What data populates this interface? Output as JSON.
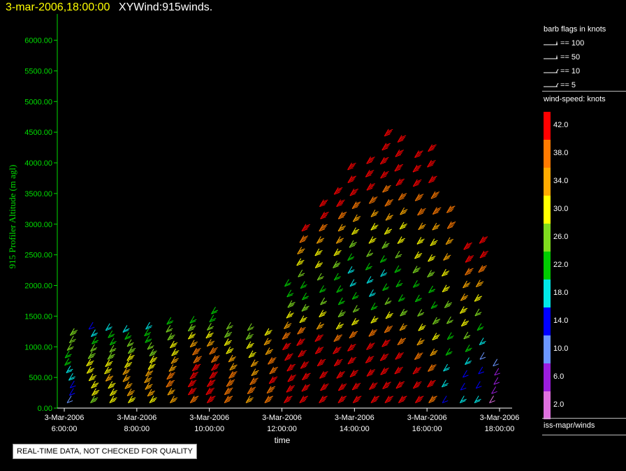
{
  "header": {
    "timestamp": "3-mar-2006,18:00:00",
    "title": "XYWind:915winds."
  },
  "chart_data": {
    "type": "wind-barb-time-height",
    "title": "XYWind:915winds.",
    "xlabel": "time",
    "ylabel": "915 Profiler Altitude (m agl)",
    "ylim": [
      0,
      6200
    ],
    "yticks": [
      "0.00",
      "500.00",
      "1000.00",
      "1500.00",
      "2000.00",
      "2500.00",
      "3000.00",
      "3500.00",
      "4000.00",
      "4500.00",
      "5000.00",
      "5500.00",
      "6000.00"
    ],
    "xticks": [
      {
        "date": "3-Mar-2006",
        "time": "6:00:00",
        "hour": 6
      },
      {
        "date": "3-Mar-2006",
        "time": "8:00:00",
        "hour": 8
      },
      {
        "date": "3-Mar-2006",
        "time": "10:00:00",
        "hour": 10
      },
      {
        "date": "3-Mar-2006",
        "time": "12:00:00",
        "hour": 12
      },
      {
        "date": "3-Mar-2006",
        "time": "14:00:00",
        "hour": 14
      },
      {
        "date": "3-Mar-2006",
        "time": "16:00:00",
        "hour": 16
      },
      {
        "date": "3-Mar-2006",
        "time": "18:00:00",
        "hour": 18
      }
    ],
    "xlim_hours": [
      6,
      18.2
    ],
    "profiles": [
      {
        "hour": 6.2,
        "top": 1300,
        "speeds": [
          10,
          12,
          14,
          16,
          18,
          20,
          22,
          24,
          24,
          26
        ]
      },
      {
        "hour": 6.8,
        "top": 1400,
        "speeds": [
          26,
          28,
          28,
          30,
          30,
          28,
          26,
          24,
          22,
          18,
          14
        ]
      },
      {
        "hour": 7.3,
        "top": 1380,
        "speeds": [
          28,
          30,
          30,
          32,
          30,
          28,
          26,
          24,
          22,
          20,
          18
        ]
      },
      {
        "hour": 7.8,
        "top": 1350,
        "speeds": [
          30,
          32,
          34,
          34,
          32,
          30,
          28,
          26,
          24,
          22,
          18
        ]
      },
      {
        "hour": 8.4,
        "top": 1400,
        "speeds": [
          30,
          32,
          34,
          34,
          32,
          30,
          28,
          26,
          24,
          22,
          20,
          18
        ]
      },
      {
        "hour": 9.0,
        "top": 1480,
        "speeds": [
          32,
          34,
          36,
          36,
          34,
          32,
          30,
          28,
          26,
          24,
          22
        ]
      },
      {
        "hour": 9.6,
        "top": 1500,
        "speeds": [
          38,
          40,
          42,
          42,
          40,
          38,
          36,
          34,
          30,
          26,
          22
        ]
      },
      {
        "hour": 10.1,
        "top": 1650,
        "speeds": [
          40,
          42,
          42,
          42,
          40,
          38,
          36,
          32,
          28,
          24,
          22,
          20
        ]
      },
      {
        "hour": 10.6,
        "top": 1400,
        "speeds": [
          36,
          38,
          38,
          36,
          34,
          32,
          30,
          28,
          26,
          24
        ]
      },
      {
        "hour": 11.2,
        "top": 1380,
        "speeds": [
          34,
          36,
          36,
          34,
          32,
          30,
          28,
          26,
          24
        ]
      },
      {
        "hour": 11.7,
        "top": 1300,
        "speeds": [
          36,
          38,
          40,
          38,
          36,
          34,
          32,
          30
        ]
      },
      {
        "hour": 12.2,
        "top": 2100,
        "speeds": [
          40,
          42,
          42,
          42,
          42,
          40,
          38,
          34,
          30,
          26,
          22,
          20
        ]
      },
      {
        "hour": 12.6,
        "top": 3000,
        "speeds": [
          42,
          42,
          42,
          42,
          42,
          40,
          36,
          30,
          26,
          22,
          20,
          24,
          28,
          32,
          36,
          40
        ]
      },
      {
        "hour": 13.1,
        "top": 3400,
        "speeds": [
          42,
          42,
          42,
          42,
          42,
          40,
          34,
          28,
          24,
          22,
          24,
          28,
          30,
          32,
          36,
          40,
          42
        ]
      },
      {
        "hour": 13.6,
        "top": 3600,
        "speeds": [
          42,
          42,
          42,
          42,
          40,
          36,
          30,
          26,
          22,
          20,
          22,
          26,
          28,
          32,
          34,
          38,
          40,
          42
        ]
      },
      {
        "hour": 14.0,
        "top": 4000,
        "speeds": [
          42,
          42,
          42,
          42,
          40,
          36,
          30,
          24,
          20,
          16,
          18,
          22,
          26,
          28,
          32,
          36,
          40,
          42,
          42
        ]
      },
      {
        "hour": 14.5,
        "top": 4100,
        "speeds": [
          42,
          42,
          42,
          42,
          40,
          36,
          28,
          22,
          18,
          16,
          20,
          24,
          28,
          30,
          34,
          38,
          40,
          42,
          42
        ]
      },
      {
        "hour": 14.9,
        "top": 4550,
        "speeds": [
          42,
          42,
          42,
          42,
          40,
          36,
          30,
          24,
          20,
          18,
          22,
          26,
          28,
          32,
          36,
          38,
          40,
          42,
          42,
          42
        ]
      },
      {
        "hour": 15.3,
        "top": 4450,
        "speeds": [
          42,
          42,
          42,
          40,
          38,
          32,
          26,
          22,
          20,
          22,
          24,
          28,
          30,
          34,
          36,
          40,
          42,
          42,
          42
        ]
      },
      {
        "hour": 15.8,
        "top": 4200,
        "speeds": [
          42,
          42,
          40,
          38,
          34,
          30,
          24,
          20,
          22,
          26,
          28,
          30,
          34,
          36,
          38,
          40,
          42,
          42
        ]
      },
      {
        "hour": 16.2,
        "top": 4300,
        "speeds": [
          38,
          40,
          38,
          34,
          30,
          26,
          22,
          22,
          26,
          28,
          30,
          34,
          36,
          38,
          40,
          42,
          42
        ]
      },
      {
        "hour": 16.6,
        "top": 3300,
        "speeds": [
          14,
          16,
          18,
          20,
          22,
          24,
          26,
          28,
          30,
          32,
          34,
          36,
          38
        ]
      },
      {
        "hour": 17.1,
        "top": 2700,
        "speeds": [
          16,
          14,
          14,
          18,
          22,
          24,
          28,
          30,
          32,
          34,
          38,
          40,
          42
        ]
      },
      {
        "hour": 17.5,
        "top": 2800,
        "speeds": [
          18,
          14,
          12,
          10,
          16,
          20,
          24,
          28,
          32,
          38,
          40,
          42
        ]
      },
      {
        "hour": 17.9,
        "top": 800,
        "speeds": [
          2,
          4,
          6,
          6,
          8
        ]
      }
    ]
  },
  "legend": {
    "barb_title": "barb flags in knots",
    "barbs": [
      {
        "label": "== 100",
        "knots": 100
      },
      {
        "label": "== 50",
        "knots": 50
      },
      {
        "label": "== 10",
        "knots": 10
      },
      {
        "label": "== 5",
        "knots": 5
      }
    ],
    "colorbar_title": "wind-speed: knots",
    "colorbar": [
      {
        "label": "42.0",
        "color": "#ff0000"
      },
      {
        "label": "38.0",
        "color": "#ff7a00"
      },
      {
        "label": "34.0",
        "color": "#ffaa00"
      },
      {
        "label": "30.0",
        "color": "#ffff00"
      },
      {
        "label": "26.0",
        "color": "#7fdc1e"
      },
      {
        "label": "22.0",
        "color": "#00cc00"
      },
      {
        "label": "18.0",
        "color": "#00e8e8"
      },
      {
        "label": "14.0",
        "color": "#0000ff"
      },
      {
        "label": "10.0",
        "color": "#6a96ff"
      },
      {
        "label": "6.0",
        "color": "#9b1dde"
      },
      {
        "label": "2.0",
        "color": "#e070e0"
      }
    ],
    "source": "iss-mapr/winds"
  },
  "notice": "REAL-TIME DATA, NOT CHECKED FOR QUALITY"
}
